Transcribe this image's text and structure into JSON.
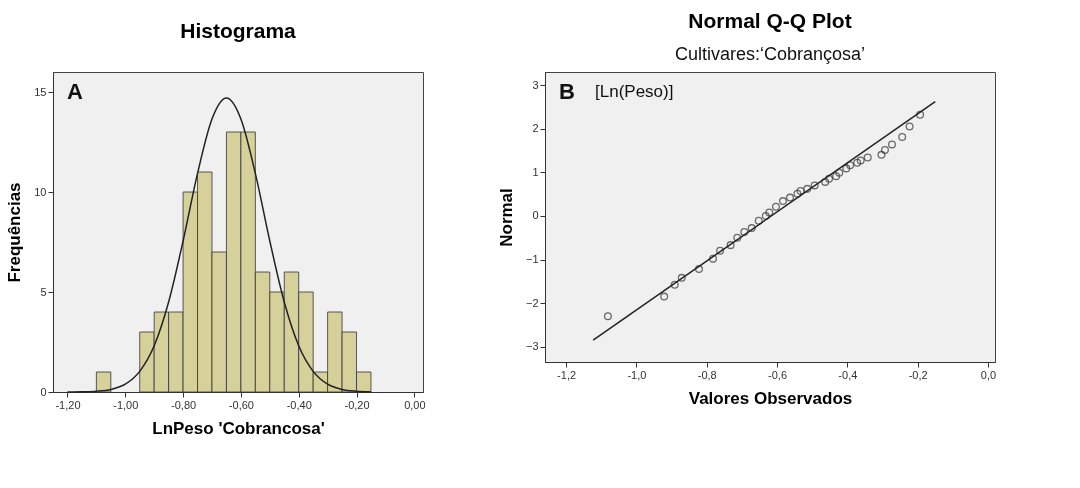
{
  "chart_data": [
    {
      "type": "histogram",
      "title": "Histograma",
      "xlabel": "LnPeso  'Cobrancosa'",
      "ylabel": "Frequências",
      "annotations": [
        "A"
      ],
      "bins": [
        -1.1,
        -1.05,
        -1.0,
        -0.95,
        -0.9,
        -0.85,
        -0.8,
        -0.75,
        -0.7,
        -0.65,
        -0.6,
        -0.55,
        -0.5,
        -0.45,
        -0.4,
        -0.35,
        -0.3,
        -0.25,
        -0.2,
        -0.15
      ],
      "values": [
        1,
        0,
        0,
        3,
        4,
        4,
        10,
        11,
        7,
        13,
        13,
        6,
        5,
        6,
        5,
        1,
        4,
        3,
        1
      ],
      "color": "#d6d09a",
      "series": [
        {
          "type": "line",
          "color": "#222222",
          "x": [
            -1.2,
            -1.15,
            -1.1,
            -1.05,
            -1.0,
            -0.95,
            -0.9,
            -0.85,
            -0.8,
            -0.75,
            -0.7,
            -0.65,
            -0.6,
            -0.55,
            -0.5,
            -0.45,
            -0.4,
            -0.35,
            -0.3,
            -0.25,
            -0.2,
            -0.15
          ],
          "values": [
            0,
            0.01,
            0.04,
            0.13,
            0.39,
            1.03,
            2.31,
            4.5,
            7.55,
            10.93,
            13.65,
            14.7,
            13.65,
            10.93,
            7.55,
            4.5,
            2.31,
            1.03,
            0.39,
            0.13,
            0.04,
            0.01
          ]
        }
      ],
      "xlim": [
        -1.25,
        0.03
      ],
      "ylim": [
        0,
        16
      ],
      "xticks": [
        {
          "value": -1.2,
          "label": "-1,20"
        },
        {
          "value": -1.0,
          "label": "-1,00"
        },
        {
          "value": -0.8,
          "label": "-0,80"
        },
        {
          "value": -0.6,
          "label": "-0,60"
        },
        {
          "value": -0.4,
          "label": "-0,40"
        },
        {
          "value": -0.2,
          "label": "-0,20"
        },
        {
          "value": 0,
          "label": "0,00"
        }
      ],
      "yticks": [
        0,
        5,
        10,
        15
      ],
      "grid": false,
      "legend": false
    },
    {
      "type": "scatter",
      "title": "Normal Q-Q Plot",
      "subtitle": "Cultivares:‘Cobrançosa’",
      "xlabel": "Valores Observados",
      "ylabel": "Normal",
      "annotations": [
        "B",
        "[Ln(Peso)]"
      ],
      "series": [
        {
          "type": "scatter",
          "color": "#333333",
          "marker": "circle",
          "x": [
            -1.081,
            -0.921,
            -0.891,
            -0.871,
            -0.822,
            -0.782,
            -0.762,
            -0.732,
            -0.713,
            -0.693,
            -0.672,
            -0.652,
            -0.632,
            -0.622,
            -0.603,
            -0.583,
            -0.563,
            -0.542,
            -0.533,
            -0.514,
            -0.493,
            -0.463,
            -0.452,
            -0.432,
            -0.423,
            -0.403,
            -0.392,
            -0.372,
            -0.362,
            -0.342,
            -0.303,
            -0.293,
            -0.273,
            -0.244,
            -0.223,
            -0.193
          ],
          "values": [
            -2.3,
            -1.85,
            -1.58,
            -1.42,
            -1.22,
            -0.98,
            -0.8,
            -0.67,
            -0.5,
            -0.37,
            -0.28,
            -0.11,
            0.0,
            0.08,
            0.21,
            0.34,
            0.42,
            0.51,
            0.57,
            0.62,
            0.7,
            0.78,
            0.85,
            0.91,
            0.99,
            1.09,
            1.16,
            1.22,
            1.27,
            1.34,
            1.4,
            1.51,
            1.64,
            1.81,
            2.05,
            2.32
          ]
        },
        {
          "type": "line",
          "color": "#222222",
          "x": [
            -1.123,
            -0.15
          ],
          "values": [
            -2.85,
            2.62
          ]
        }
      ],
      "xlim": [
        -1.26,
        0.02
      ],
      "ylim": [
        -3.35,
        3.3
      ],
      "xticks": [
        {
          "value": -1.2,
          "label": "-1,2"
        },
        {
          "value": -1.0,
          "label": "-1,0"
        },
        {
          "value": -0.8,
          "label": "-0,8"
        },
        {
          "value": -0.6,
          "label": "-0,6"
        },
        {
          "value": -0.4,
          "label": "-0,4"
        },
        {
          "value": -0.2,
          "label": "-0,2"
        },
        {
          "value": 0,
          "label": "0,0"
        }
      ],
      "yticks": [
        -3,
        -2,
        -1,
        0,
        1,
        2,
        3
      ],
      "grid": false,
      "legend": false
    }
  ]
}
